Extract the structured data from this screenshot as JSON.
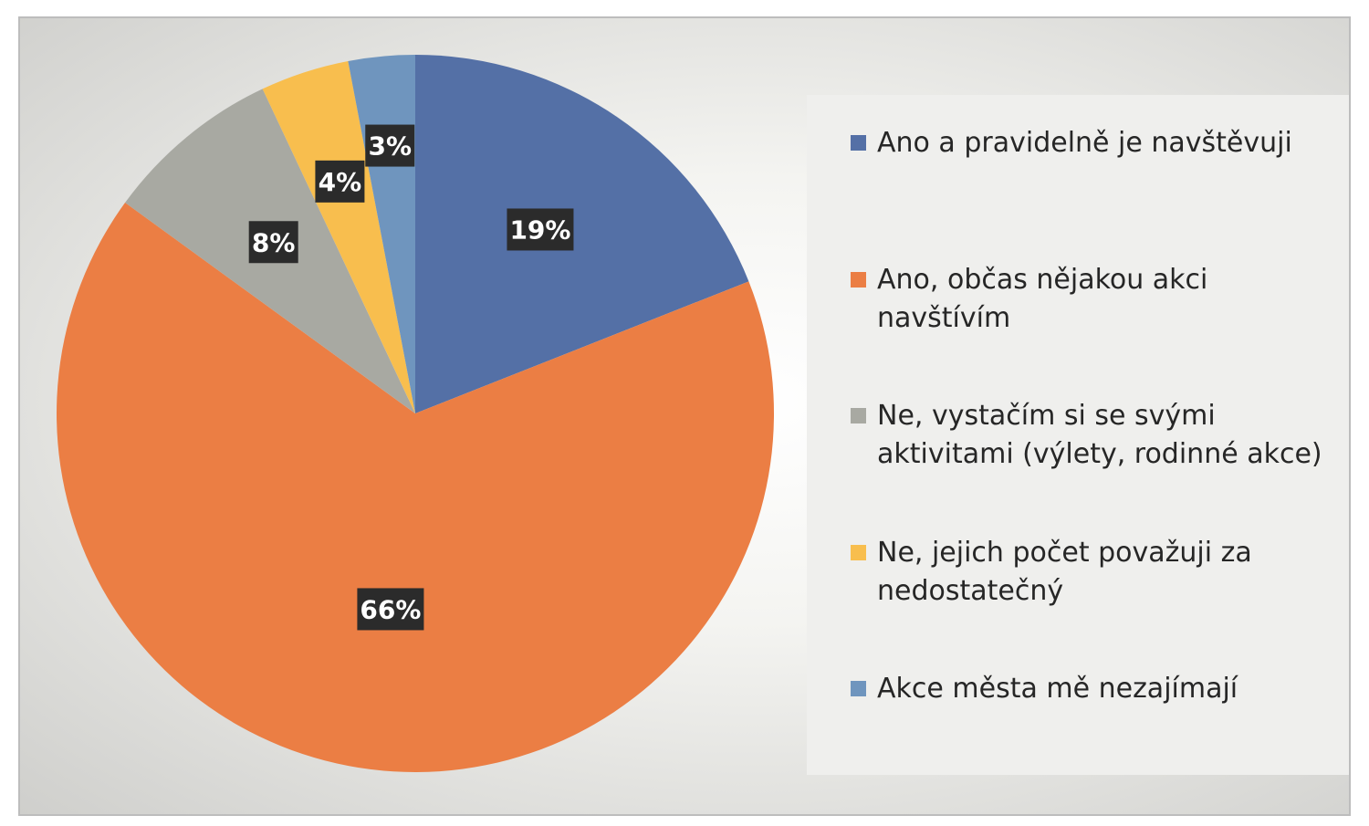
{
  "chart_data": {
    "type": "pie",
    "title": "",
    "legend_position": "right",
    "start_angle_deg": 0,
    "direction": "clockwise",
    "slices": [
      {
        "label": "Ano a pravidelně je navštěvuji",
        "value": 19,
        "display": "19%",
        "color": "#5470A6"
      },
      {
        "label": "Ano, občas nějakou akci navštívím",
        "value": 66,
        "display": "66%",
        "color": "#EB7E44"
      },
      {
        "label": "Ne, vystačím si se svými aktivitami (výlety, rodinné akce)",
        "value": 8,
        "display": "8%",
        "color": "#A8A9A2"
      },
      {
        "label": "Ne, jejich počet považuji za nedostatečný",
        "value": 4,
        "display": "4%",
        "color": "#F8BE4E"
      },
      {
        "label": "Akce města mě nezajímají",
        "value": 3,
        "display": "3%",
        "color": "#6F95BE"
      }
    ]
  }
}
